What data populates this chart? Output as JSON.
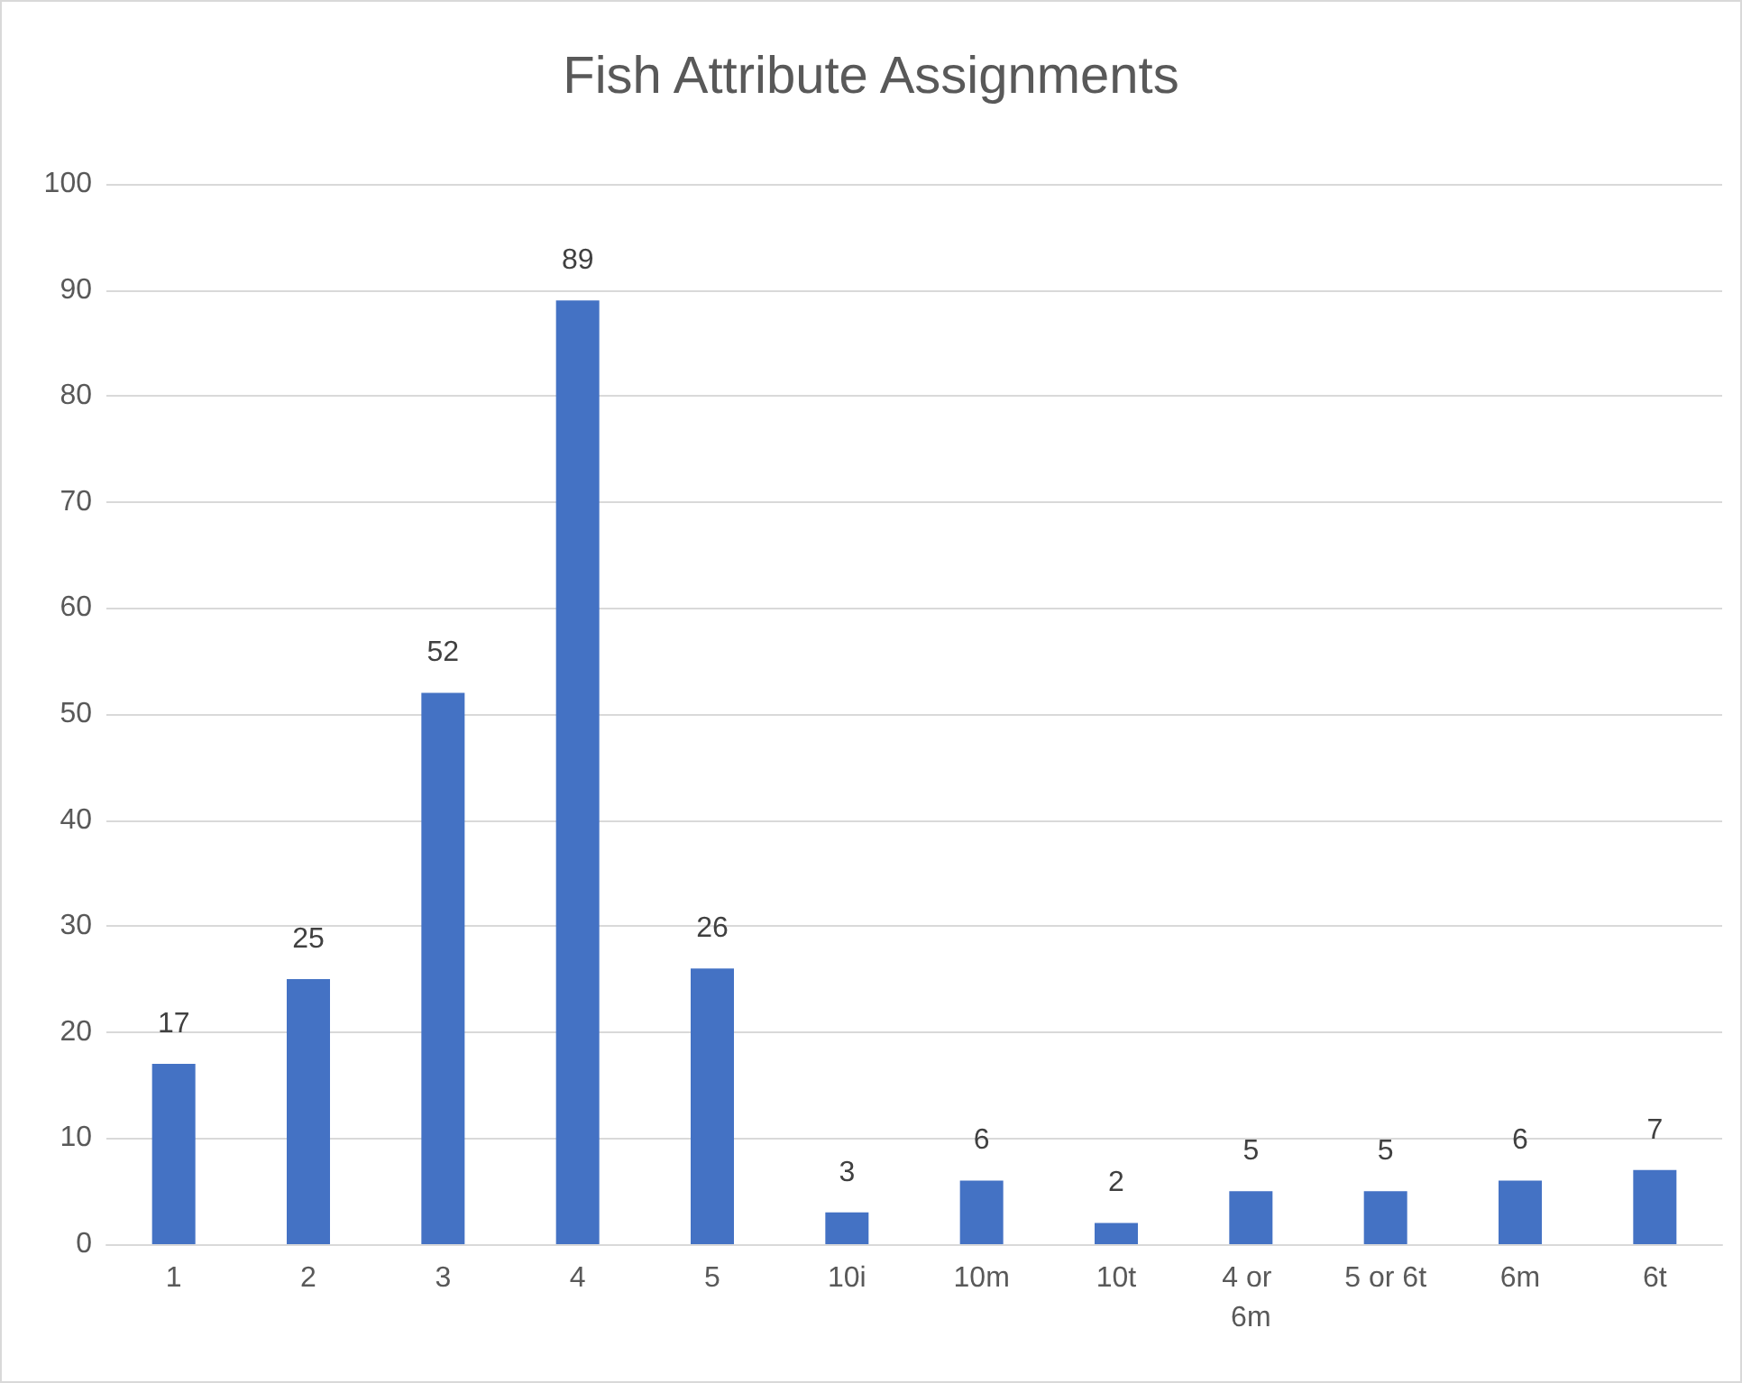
{
  "chart_data": {
    "type": "bar",
    "title": "Fish Attribute Assignments",
    "categories": [
      "1",
      "2",
      "3",
      "4",
      "5",
      "10i",
      "10m",
      "10t",
      "4 or 6m",
      "5 or 6t",
      "6m",
      "6t"
    ],
    "values": [
      17,
      25,
      52,
      89,
      26,
      3,
      6,
      2,
      5,
      5,
      6,
      7
    ],
    "color": "#4472c4",
    "ylim": [
      0,
      100
    ],
    "yticks": [
      0,
      10,
      20,
      30,
      40,
      50,
      60,
      70,
      80,
      90,
      100
    ],
    "grid": "y",
    "data_labels": true
  }
}
